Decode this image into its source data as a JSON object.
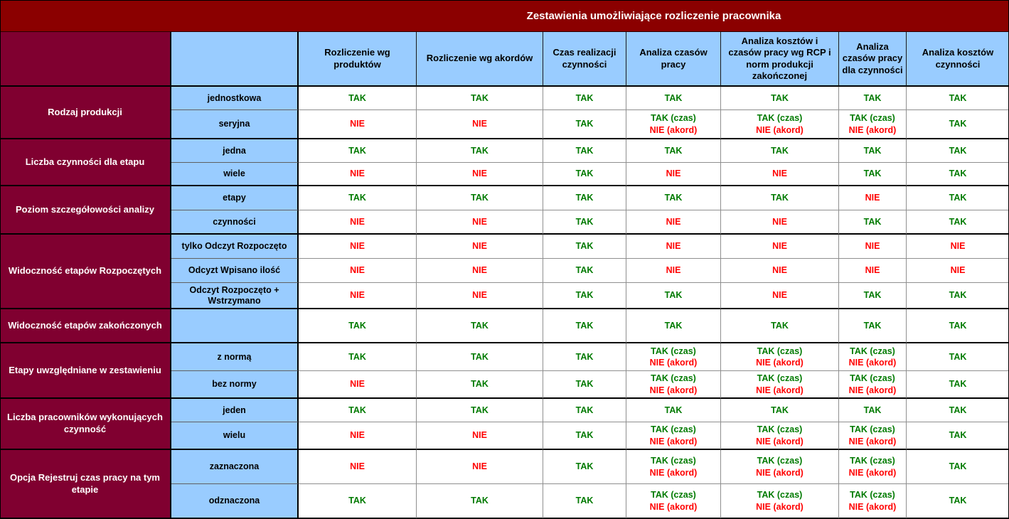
{
  "title": "Zestawienia umożliwiające rozliczenie pracownika",
  "colors": {
    "banner": "#8B0000",
    "maroon": "#800030",
    "blue": "#99CCFF",
    "yes": "#007A00",
    "no": "#FF0000"
  },
  "columns": [
    "Rozliczenie wg produktów",
    "Rozliczenie wg akordów",
    "Czas realizacji czynności",
    "Analiza czasów pracy",
    "Analiza kosztów i czasów pracy wg RCP i norm produkcji zakończonej",
    "Analiza czasów pracy dla czynności",
    "Analiza kosztów czynności"
  ],
  "groups": [
    {
      "label": "Rodzaj produkcji",
      "rows": [
        {
          "sublabel": "jednostkowa",
          "values": [
            "TAK",
            "TAK",
            "TAK",
            "TAK",
            "TAK",
            "TAK",
            "TAK"
          ]
        },
        {
          "sublabel": "seryjna",
          "values": [
            "NIE",
            "NIE",
            "TAK",
            "TAK (czas)\nNIE (akord)",
            "TAK (czas)\nNIE (akord)",
            "TAK (czas)\nNIE (akord)",
            "TAK"
          ]
        }
      ]
    },
    {
      "label": "Liczba czynności dla etapu",
      "rows": [
        {
          "sublabel": "jedna",
          "values": [
            "TAK",
            "TAK",
            "TAK",
            "TAK",
            "TAK",
            "TAK",
            "TAK"
          ]
        },
        {
          "sublabel": "wiele",
          "values": [
            "NIE",
            "NIE",
            "TAK",
            "NIE",
            "NIE",
            "TAK",
            "TAK"
          ]
        }
      ]
    },
    {
      "label": "Poziom szczegółowości analizy",
      "rows": [
        {
          "sublabel": "etapy",
          "values": [
            "TAK",
            "TAK",
            "TAK",
            "TAK",
            "TAK",
            "NIE",
            "TAK"
          ]
        },
        {
          "sublabel": "czynności",
          "values": [
            "NIE",
            "NIE",
            "TAK",
            "NIE",
            "NIE",
            "TAK",
            "TAK"
          ]
        }
      ]
    },
    {
      "label": "Widoczność etapów Rozpoczętych",
      "rows": [
        {
          "sublabel": "tylko Odczyt Rozpoczęto",
          "values": [
            "NIE",
            "NIE",
            "TAK",
            "NIE",
            "NIE",
            "NIE",
            "NIE"
          ]
        },
        {
          "sublabel": "Odcyzt Wpisano ilość",
          "values": [
            "NIE",
            "NIE",
            "TAK",
            "NIE",
            "NIE",
            "NIE",
            "NIE"
          ]
        },
        {
          "sublabel": "Odczyt Rozpoczęto + Wstrzymano",
          "values": [
            "NIE",
            "NIE",
            "TAK",
            "TAK",
            "NIE",
            "TAK",
            "TAK"
          ]
        }
      ]
    },
    {
      "label": "Widoczność etapów zakończonych",
      "rows": [
        {
          "sublabel": "",
          "values": [
            "TAK",
            "TAK",
            "TAK",
            "TAK",
            "TAK",
            "TAK",
            "TAK"
          ]
        }
      ]
    },
    {
      "label": "Etapy uwzględniane w zestawieniu",
      "rows": [
        {
          "sublabel": "z normą",
          "values": [
            "TAK",
            "TAK",
            "TAK",
            "TAK (czas)\nNIE (akord)",
            "TAK (czas)\nNIE (akord)",
            "TAK (czas)\nNIE (akord)",
            "TAK"
          ]
        },
        {
          "sublabel": "bez normy",
          "values": [
            "NIE",
            "TAK",
            "TAK",
            "TAK (czas)\nNIE (akord)",
            "TAK (czas)\nNIE (akord)",
            "TAK (czas)\nNIE (akord)",
            "TAK"
          ]
        }
      ]
    },
    {
      "label": "Liczba pracowników wykonujących czynność",
      "rows": [
        {
          "sublabel": "jeden",
          "values": [
            "TAK",
            "TAK",
            "TAK",
            "TAK",
            "TAK",
            "TAK",
            "TAK"
          ]
        },
        {
          "sublabel": "wielu",
          "values": [
            "NIE",
            "NIE",
            "TAK",
            "TAK (czas)\nNIE (akord)",
            "TAK (czas)\nNIE (akord)",
            "TAK (czas)\nNIE (akord)",
            "TAK"
          ]
        }
      ]
    },
    {
      "label": "Opcja Rejestruj czas pracy  na tym etapie",
      "rows": [
        {
          "sublabel": "zaznaczona",
          "values": [
            "NIE",
            "NIE",
            "TAK",
            "TAK (czas)\nNIE (akord)",
            "TAK (czas)\nNIE (akord)",
            "TAK (czas)\nNIE (akord)",
            "TAK"
          ]
        },
        {
          "sublabel": "odznaczona",
          "values": [
            "TAK",
            "TAK",
            "TAK",
            "TAK (czas)\nNIE (akord)",
            "TAK (czas)\nNIE (akord)",
            "TAK (czas)\nNIE (akord)",
            "TAK"
          ]
        }
      ]
    }
  ]
}
